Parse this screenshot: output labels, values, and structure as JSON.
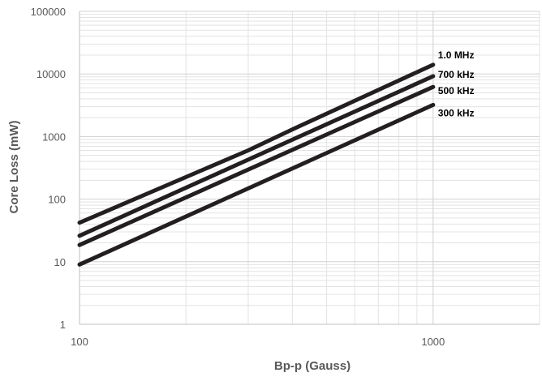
{
  "chart_data": {
    "type": "line",
    "x_scale": "log",
    "y_scale": "log",
    "xlabel": "Bp-p (Gauss)",
    "ylabel": "Core Loss (mW)",
    "xlim": [
      100,
      2000
    ],
    "ylim": [
      1,
      100000
    ],
    "x_ticks": [
      "100",
      "1000"
    ],
    "y_ticks": [
      "1",
      "10",
      "100",
      "1000",
      "10000",
      "100000"
    ],
    "grid": true,
    "legend": "labels at line ends",
    "series": [
      {
        "name": "1.0 MHz",
        "x": [
          100,
          300,
          400,
          1000
        ],
        "y": [
          42,
          600,
          1300,
          14000
        ]
      },
      {
        "name": "700 kHz",
        "x": [
          100,
          1000
        ],
        "y": [
          26,
          9200
        ]
      },
      {
        "name": "500 kHz",
        "x": [
          100,
          1000
        ],
        "y": [
          18.5,
          6200
        ]
      },
      {
        "name": "300 kHz",
        "x": [
          100,
          1000
        ],
        "y": [
          9,
          3200
        ]
      }
    ],
    "colors": {
      "line": "#231f20",
      "grid": "#e3e3e3",
      "text": "#595959"
    }
  }
}
